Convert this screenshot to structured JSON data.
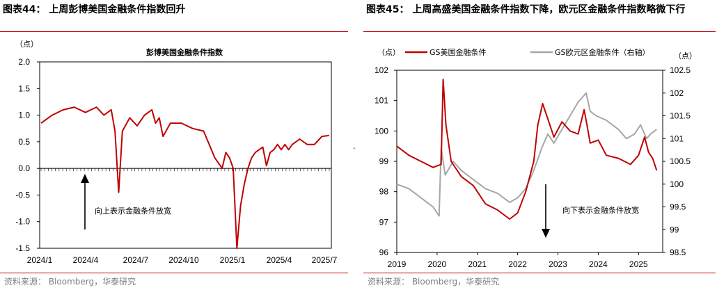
{
  "left": {
    "title": "图表44：  上周彭博美国金融条件指数回升",
    "source": "资料来源：   Bloomberg，华泰研究",
    "unit": "（点）",
    "chart_data": {
      "type": "line",
      "title": "彭博美国金融条件指数",
      "x_labels": [
        "2024/1",
        "2024/4",
        "2024/7",
        "2024/10",
        "2025/1",
        "2025/4",
        "2025/7"
      ],
      "y_ticks": [
        "2.0",
        "1.5",
        "1.0",
        "0.5",
        "0.0",
        "-0.5",
        "-1.0",
        "-1.5"
      ],
      "ylim": [
        -1.5,
        2.0
      ],
      "annotation": "向上表示金融条件放宽",
      "series": [
        {
          "name": "彭博美国金融条件指数",
          "color": "#c00000",
          "t": [
            0,
            3,
            6,
            9,
            12,
            15,
            17,
            19,
            20,
            21,
            22,
            24,
            26,
            28,
            30,
            31,
            32,
            33,
            35,
            38,
            41,
            44,
            47,
            49,
            50,
            51,
            52,
            53,
            54,
            55,
            56,
            57,
            58,
            59,
            60,
            61,
            62,
            63,
            64,
            65,
            66,
            67,
            68,
            69,
            70,
            72,
            74,
            76,
            78
          ],
          "values": [
            0.85,
            1.0,
            1.1,
            1.15,
            1.05,
            1.15,
            1.0,
            1.1,
            0.7,
            -0.45,
            0.7,
            0.95,
            0.8,
            1.0,
            1.1,
            0.85,
            0.95,
            0.6,
            0.85,
            0.85,
            0.75,
            0.7,
            0.2,
            0.0,
            0.3,
            0.2,
            0.0,
            -1.5,
            -0.7,
            -0.3,
            0.0,
            0.2,
            0.3,
            0.35,
            0.4,
            0.05,
            0.3,
            0.35,
            0.45,
            0.35,
            0.45,
            0.35,
            0.45,
            0.5,
            0.55,
            0.45,
            0.45,
            0.6,
            0.62
          ]
        }
      ]
    }
  },
  "right": {
    "title": "图表45：  上周高盛美国金融条件指数下降，欧元区金融条件指数略微下行",
    "source": "资料来源：   Bloomberg，华泰研究",
    "unit_left": "（点）",
    "unit_right": "（点）",
    "chart_data": {
      "type": "line",
      "x_labels": [
        "2019",
        "2020",
        "2021",
        "2022",
        "2023",
        "2024",
        "2025"
      ],
      "y_left_ticks": [
        "102",
        "101",
        "100",
        "99",
        "98",
        "97",
        "96"
      ],
      "y_right_ticks": [
        "102.5",
        "102",
        "101.5",
        "101",
        "100.5",
        "100",
        "99.5",
        "99",
        "98.5"
      ],
      "ylim_left": [
        96,
        102
      ],
      "ylim_right": [
        98.5,
        102.5
      ],
      "annotation": "向下表示金融条件放宽",
      "series": [
        {
          "name": "GS美国金融条件",
          "color": "#c00000",
          "axis": "left",
          "x": [
            2019.0,
            2019.3,
            2019.6,
            2019.9,
            2020.1,
            2020.15,
            2020.22,
            2020.35,
            2020.6,
            2020.9,
            2021.2,
            2021.5,
            2021.8,
            2022.0,
            2022.2,
            2022.4,
            2022.5,
            2022.62,
            2022.75,
            2022.9,
            2023.1,
            2023.3,
            2023.5,
            2023.65,
            2023.72,
            2023.8,
            2024.0,
            2024.2,
            2024.5,
            2024.8,
            2025.0,
            2025.15,
            2025.25,
            2025.35,
            2025.45
          ],
          "values": [
            99.5,
            99.2,
            99.0,
            98.8,
            98.9,
            101.7,
            100.2,
            99.0,
            98.5,
            98.2,
            97.6,
            97.4,
            97.1,
            97.3,
            98.0,
            99.0,
            100.2,
            100.9,
            100.4,
            99.8,
            100.3,
            100.0,
            99.9,
            100.7,
            100.2,
            99.6,
            99.7,
            99.2,
            99.1,
            98.9,
            99.2,
            99.8,
            99.3,
            99.1,
            98.7
          ]
        },
        {
          "name": "GS欧元区金融条件（右轴）",
          "color": "#a6a6a6",
          "axis": "right",
          "x": [
            2019.0,
            2019.3,
            2019.6,
            2019.9,
            2020.05,
            2020.1,
            2020.2,
            2020.4,
            2020.6,
            2020.9,
            2021.2,
            2021.5,
            2021.8,
            2022.0,
            2022.2,
            2022.4,
            2022.6,
            2022.75,
            2022.9,
            2023.1,
            2023.3,
            2023.5,
            2023.7,
            2023.8,
            2023.95,
            2024.2,
            2024.5,
            2024.7,
            2024.9,
            2025.05,
            2025.2,
            2025.3,
            2025.45
          ],
          "values": [
            100.0,
            99.9,
            99.7,
            99.5,
            99.3,
            100.8,
            100.2,
            100.5,
            100.3,
            100.1,
            99.9,
            99.8,
            99.6,
            99.7,
            99.9,
            100.3,
            100.8,
            101.1,
            100.9,
            101.2,
            101.5,
            101.8,
            102.0,
            101.6,
            101.5,
            101.4,
            101.2,
            101.0,
            101.1,
            101.3,
            101.0,
            101.1,
            101.2
          ]
        }
      ]
    }
  },
  "stray_mark": "-"
}
